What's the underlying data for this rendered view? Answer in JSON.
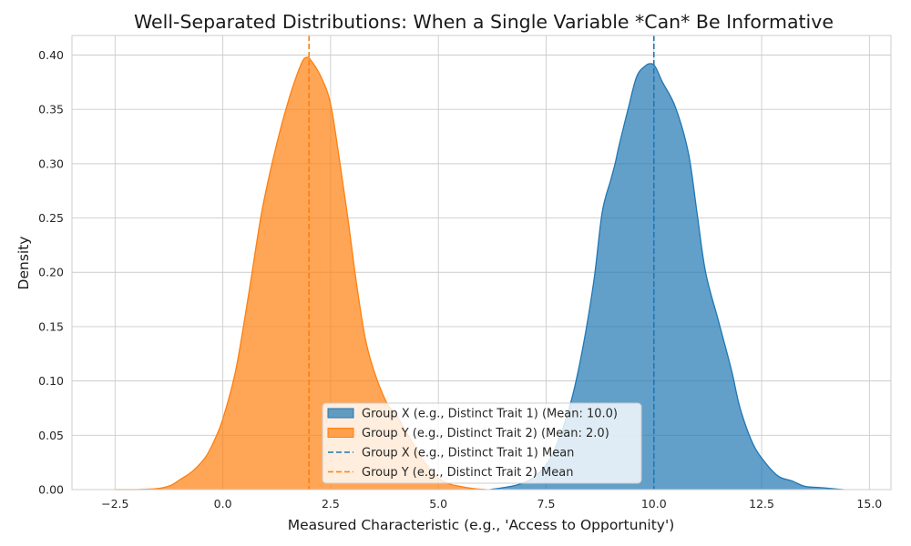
{
  "chart_data": {
    "type": "area",
    "title": "Well-Separated Distributions: When a Single Variable *Can* Be Informative",
    "xlabel": "Measured Characteristic (e.g., 'Access to Opportunity')",
    "ylabel": "Density",
    "xlim": [
      -3.5,
      15.5
    ],
    "ylim": [
      0,
      0.418
    ],
    "xticks": [
      -2.5,
      0.0,
      2.5,
      5.0,
      7.5,
      10.0,
      12.5,
      15.0
    ],
    "xtick_labels": [
      "−2.5",
      "0.0",
      "2.5",
      "5.0",
      "7.5",
      "10.0",
      "12.5",
      "15.0"
    ],
    "yticks": [
      0.0,
      0.05,
      0.1,
      0.15,
      0.2,
      0.25,
      0.3,
      0.35,
      0.4
    ],
    "ytick_labels": [
      "0.00",
      "0.05",
      "0.10",
      "0.15",
      "0.20",
      "0.25",
      "0.30",
      "0.35",
      "0.40"
    ],
    "grid": true,
    "legend_position": "lower-center",
    "series": [
      {
        "name": "Group X (e.g., Distinct Trait 1) (Mean: 10.0)",
        "color": "#1f77b4",
        "mean": 10.0,
        "mean_label": "Group X (e.g., Distinct Trait 1) Mean",
        "x": [
          6.2,
          6.8,
          7.2,
          7.6,
          8.0,
          8.3,
          8.6,
          8.8,
          9.0,
          9.1,
          9.2,
          9.4,
          9.6,
          9.8,
          9.95,
          10.05,
          10.2,
          10.5,
          10.8,
          11.0,
          11.2,
          11.5,
          11.8,
          12.0,
          12.3,
          12.6,
          12.9,
          13.2,
          13.5,
          13.8,
          14.1,
          14.4
        ],
        "y": [
          0.0,
          0.004,
          0.011,
          0.029,
          0.07,
          0.12,
          0.19,
          0.255,
          0.285,
          0.3,
          0.318,
          0.35,
          0.38,
          0.39,
          0.392,
          0.388,
          0.375,
          0.352,
          0.31,
          0.255,
          0.2,
          0.155,
          0.11,
          0.075,
          0.042,
          0.024,
          0.012,
          0.008,
          0.003,
          0.002,
          0.001,
          0.0
        ]
      },
      {
        "name": "Group Y (e.g., Distinct Trait 2) (Mean: 2.0)",
        "color": "#ff7f0e",
        "mean": 2.0,
        "mean_label": "Group Y (e.g., Distinct Trait 2) Mean",
        "x": [
          -2.5,
          -2.0,
          -1.5,
          -1.2,
          -1.0,
          -0.7,
          -0.4,
          -0.2,
          0.0,
          0.3,
          0.6,
          0.9,
          1.2,
          1.5,
          1.8,
          1.95,
          2.1,
          2.3,
          2.5,
          2.7,
          2.9,
          3.1,
          3.3,
          3.5,
          3.8,
          4.0,
          4.3,
          4.6,
          4.9,
          5.2,
          5.5,
          5.8,
          6.1
        ],
        "y": [
          0.0,
          0.0,
          0.001,
          0.004,
          0.009,
          0.017,
          0.03,
          0.045,
          0.065,
          0.11,
          0.18,
          0.255,
          0.31,
          0.355,
          0.39,
          0.398,
          0.392,
          0.378,
          0.355,
          0.305,
          0.25,
          0.19,
          0.14,
          0.11,
          0.08,
          0.07,
          0.05,
          0.03,
          0.014,
          0.006,
          0.003,
          0.001,
          0.0
        ]
      }
    ]
  }
}
